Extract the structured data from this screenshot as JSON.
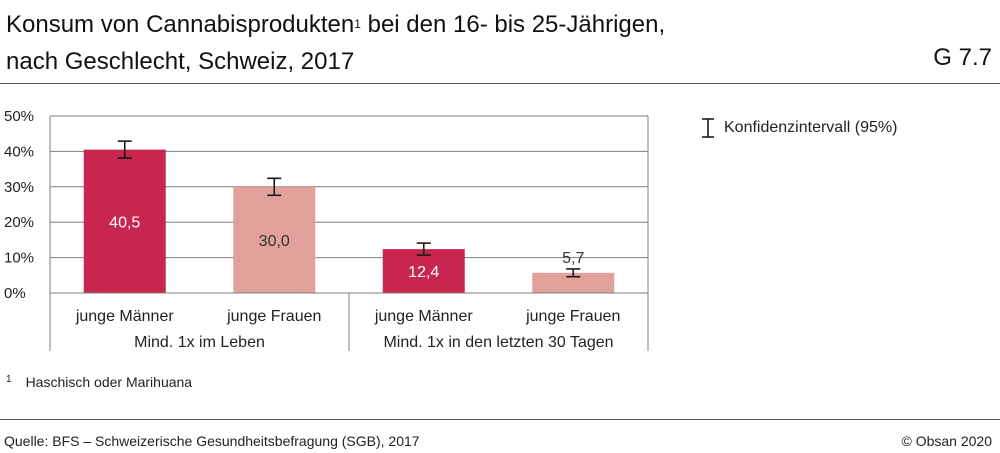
{
  "header": {
    "title_line1_a": "Konsum von Cannabisprodukten",
    "title_sup": "1",
    "title_line1_b": " bei den 16- bis 25-Jährigen,",
    "title_line2": "nach Geschlecht, Schweiz, 2017",
    "graphic_number": "G 7.7"
  },
  "legend": {
    "label": "Konfidenzintervall (95%)"
  },
  "footnote": {
    "mark": "1",
    "text": "Haschisch oder Marihuana"
  },
  "footer": {
    "source": "Quelle: BFS – Schweizerische Gesundheitsbefragung (SGB), 2017",
    "copyright": "© Obsan 2020"
  },
  "colors": {
    "dark_bar": "#c8254f",
    "light_bar": "#e2a09b",
    "grid": "#7f7f7f",
    "axis": "#7f7f7f"
  },
  "chart_data": {
    "type": "bar",
    "title": "Konsum von Cannabisprodukten bei den 16- bis 25-Jährigen, nach Geschlecht, Schweiz, 2017",
    "ylim": [
      0,
      50
    ],
    "yticks": [
      0,
      10,
      20,
      30,
      40,
      50
    ],
    "ytick_labels": [
      "0%",
      "10%",
      "20%",
      "30%",
      "40%",
      "50%"
    ],
    "categories": [
      "junge Männer",
      "junge Frauen",
      "junge Männer",
      "junge Frauen"
    ],
    "groups": [
      "Mind. 1x im Leben",
      "Mind. 1x in den letzten 30 Tagen"
    ],
    "values": [
      40.5,
      30.0,
      12.4,
      5.7
    ],
    "value_labels": [
      "40,5",
      "30,0",
      "12,4",
      "5,7"
    ],
    "ci_low": [
      38.1,
      27.6,
      10.7,
      4.6
    ],
    "ci_high": [
      42.9,
      32.4,
      14.1,
      6.8
    ],
    "bar_colors": [
      "#c8254f",
      "#e2a09b",
      "#c8254f",
      "#e2a09b"
    ],
    "label_inside": [
      true,
      true,
      true,
      false
    ],
    "label_colors": [
      "#ffffff",
      "#333333",
      "#ffffff",
      "#333333"
    ],
    "grid": true
  }
}
